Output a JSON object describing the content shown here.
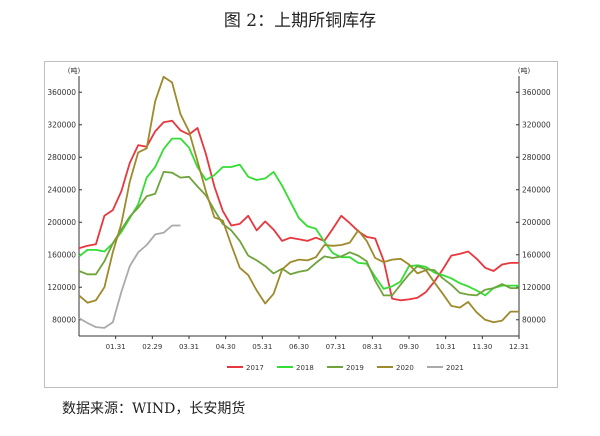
{
  "figure_title": "图 2：上期所铜库存",
  "source_note": "数据来源：WIND，长安期货",
  "chart_data": {
    "type": "line",
    "y_unit_left": "吨",
    "y_unit_right": "吨",
    "ylim": [
      60000,
      380000
    ],
    "y_ticks": [
      80000,
      120000,
      160000,
      200000,
      240000,
      280000,
      320000,
      360000
    ],
    "x_ticks": [
      "01.31",
      "02.29",
      "03.31",
      "04.30",
      "05.31",
      "06.30",
      "07.31",
      "08.31",
      "09.30",
      "10.31",
      "11.30",
      "12.31"
    ],
    "xlim": [
      0,
      52
    ],
    "grid": false,
    "legend_position": "bottom",
    "series": [
      {
        "name": "2017",
        "color": "#e8363d",
        "x": [
          0,
          1,
          2,
          3,
          4,
          5,
          6,
          7,
          8,
          9,
          10,
          11,
          12,
          13,
          14,
          15,
          16,
          17,
          18,
          19,
          20,
          21,
          22,
          23,
          24,
          25,
          26,
          27,
          28,
          29,
          30,
          31,
          32,
          33,
          34,
          35,
          36,
          37,
          38,
          39,
          40,
          41,
          42,
          43,
          44,
          45,
          46,
          47,
          48,
          49,
          50,
          51,
          52
        ],
        "y": [
          168000,
          171000,
          173000,
          208000,
          215000,
          238000,
          273000,
          295000,
          293000,
          312000,
          323000,
          325000,
          313000,
          308000,
          316000,
          284000,
          244000,
          214000,
          196000,
          198000,
          208000,
          190000,
          201000,
          191000,
          177000,
          181000,
          179000,
          177000,
          181000,
          177000,
          192000,
          208000,
          199000,
          189000,
          182000,
          180000,
          153000,
          106000,
          104000,
          105000,
          107000,
          114000,
          127000,
          142000,
          159000,
          161000,
          164000,
          155000,
          144000,
          140000,
          148000,
          150000,
          150000
        ]
      },
      {
        "name": "2018",
        "color": "#33dd33",
        "x": [
          0,
          1,
          2,
          3,
          4,
          5,
          6,
          7,
          8,
          9,
          10,
          11,
          12,
          13,
          14,
          15,
          16,
          17,
          18,
          19,
          20,
          21,
          22,
          23,
          24,
          25,
          26,
          27,
          28,
          29,
          30,
          31,
          32,
          33,
          34,
          35,
          36,
          37,
          38,
          39,
          40,
          41,
          42,
          43,
          44,
          45,
          46,
          47,
          48,
          49,
          50,
          51,
          52
        ],
        "y": [
          158000,
          166000,
          166000,
          164000,
          174000,
          188000,
          205000,
          222000,
          255000,
          268000,
          290000,
          303000,
          303000,
          292000,
          268000,
          252000,
          258000,
          268000,
          268000,
          271000,
          256000,
          252000,
          254000,
          262000,
          245000,
          225000,
          205000,
          195000,
          192000,
          176000,
          162000,
          157000,
          157000,
          150000,
          149000,
          133000,
          118000,
          121000,
          127000,
          146000,
          147000,
          145000,
          138000,
          135000,
          131000,
          125000,
          121000,
          116000,
          110000,
          119000,
          122000,
          122000,
          122000
        ]
      },
      {
        "name": "2019",
        "color": "#6fa33c",
        "x": [
          0,
          1,
          2,
          3,
          4,
          5,
          6,
          7,
          8,
          9,
          10,
          11,
          12,
          13,
          14,
          15,
          16,
          17,
          18,
          19,
          20,
          21,
          22,
          23,
          24,
          25,
          26,
          27,
          28,
          29,
          30,
          31,
          32,
          33,
          34,
          35,
          36,
          37,
          38,
          39,
          40,
          41,
          42,
          43,
          44,
          45,
          46,
          47,
          48,
          49,
          50,
          51,
          52
        ],
        "y": [
          140000,
          136000,
          136000,
          152000,
          174000,
          191000,
          207000,
          218000,
          232000,
          235000,
          262000,
          261000,
          255000,
          256000,
          244000,
          233000,
          215000,
          198000,
          190000,
          177000,
          159000,
          153000,
          146000,
          137000,
          143000,
          136000,
          139000,
          141000,
          150000,
          158000,
          156000,
          158000,
          163000,
          159000,
          152000,
          128000,
          110000,
          110000,
          123000,
          136000,
          146000,
          142000,
          141000,
          131000,
          123000,
          113000,
          111000,
          110000,
          117000,
          119000,
          124000,
          119000,
          119000
        ]
      },
      {
        "name": "2020",
        "color": "#9e8a2b",
        "x": [
          0,
          1,
          2,
          3,
          4,
          5,
          6,
          7,
          8,
          9,
          10,
          11,
          12,
          13,
          14,
          15,
          16,
          17,
          18,
          19,
          20,
          21,
          22,
          23,
          24,
          25,
          26,
          27,
          28,
          29,
          30,
          31,
          32,
          33,
          34,
          35,
          36,
          37,
          38,
          39,
          40,
          41,
          42,
          43,
          44,
          45,
          46,
          47,
          48,
          49,
          50,
          51,
          52
        ],
        "y": [
          110000,
          101000,
          104000,
          120000,
          163000,
          198000,
          250000,
          286000,
          291000,
          349000,
          379000,
          372000,
          333000,
          312000,
          275000,
          238000,
          206000,
          202000,
          172000,
          144000,
          135000,
          116000,
          100000,
          112000,
          142000,
          151000,
          154000,
          153000,
          157000,
          172000,
          171000,
          172000,
          175000,
          190000,
          177000,
          156000,
          151000,
          154000,
          155000,
          148000,
          137000,
          141000,
          126000,
          112000,
          97000,
          95000,
          102000,
          89000,
          80000,
          77000,
          79000,
          90000,
          90000
        ]
      },
      {
        "name": "2021",
        "color": "#aaaaaa",
        "x": [
          0,
          1,
          2,
          3,
          4,
          5,
          6,
          7,
          8,
          9,
          10,
          11,
          12
        ],
        "y": [
          82000,
          76000,
          71000,
          70000,
          77000,
          114000,
          146000,
          163000,
          172000,
          185000,
          187000,
          196000,
          196000
        ]
      }
    ]
  }
}
